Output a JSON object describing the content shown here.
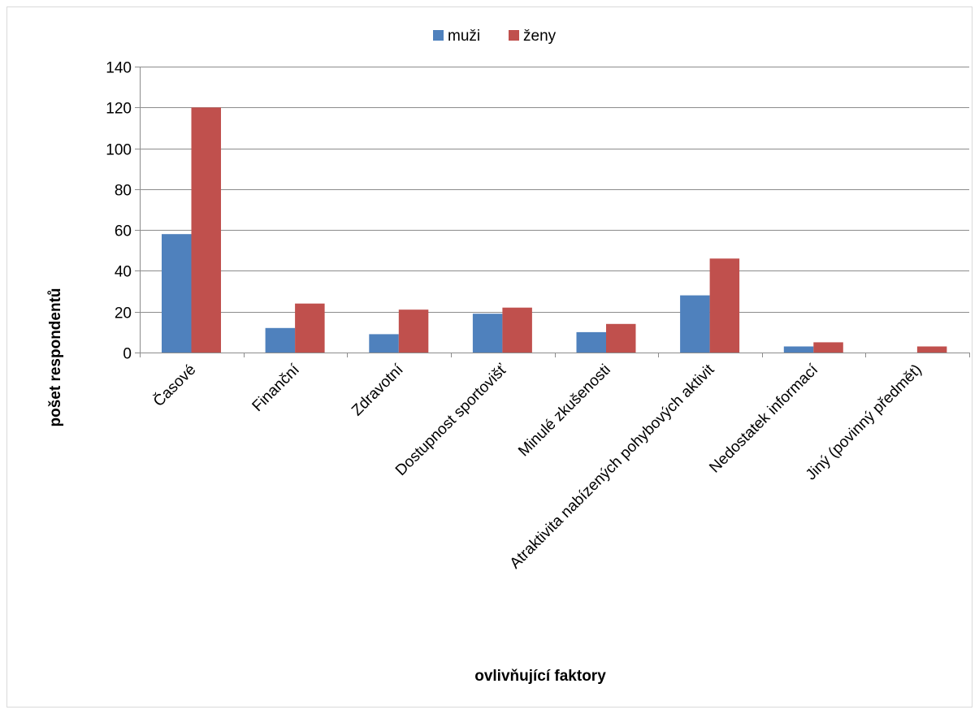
{
  "chart_data": {
    "type": "bar",
    "title": "",
    "xlabel": "ovlivňující faktory",
    "ylabel": "pošet respondentů",
    "categories": [
      "Časové",
      "Finanční",
      "Zdravotní",
      "Dostupnost sportovišť",
      "Minulé zkušenosti",
      "Atraktivita nabízených pohybových aktivit",
      "Nedostatek informací",
      "Jiný (povinný předmět)"
    ],
    "series": [
      {
        "name": "muži",
        "values": [
          58,
          12,
          9,
          19,
          10,
          28,
          3,
          0
        ],
        "color": "#4f81bd"
      },
      {
        "name": "ženy",
        "values": [
          120,
          24,
          21,
          22,
          14,
          46,
          5,
          3
        ],
        "color": "#c0504d"
      }
    ],
    "ylim": [
      0,
      140
    ],
    "yticks": [
      0,
      20,
      40,
      60,
      80,
      100,
      120,
      140
    ],
    "grid": true,
    "legend_position": "top-center"
  }
}
